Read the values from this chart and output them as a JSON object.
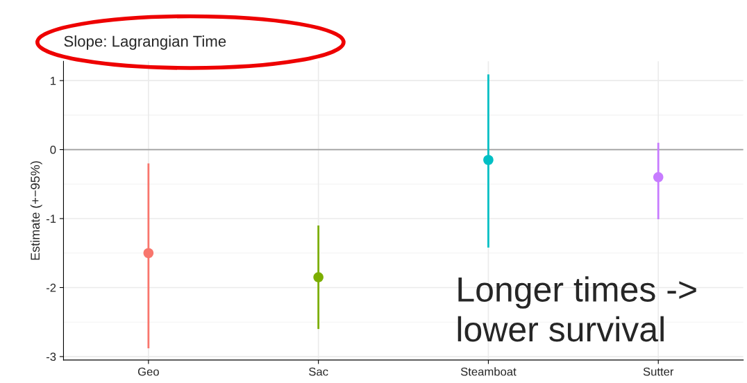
{
  "chart_data": {
    "type": "scatter",
    "title": "Slope: Lagrangian Time",
    "ylabel": "Estimate (+−95%)",
    "categories": [
      "Geo",
      "Sac",
      "Steamboat",
      "Sutter"
    ],
    "values": [
      -1.5,
      -1.85,
      -0.15,
      -0.4
    ],
    "colors": [
      "#f8766d",
      "#7cae00",
      "#00bfc4",
      "#c77cff"
    ],
    "errors": [
      [
        -2.88,
        -0.2
      ],
      [
        -2.6,
        -1.1
      ],
      [
        -1.42,
        1.09
      ],
      [
        -1.01,
        0.1
      ]
    ],
    "ylim": [
      -3.05,
      1.28
    ],
    "yticks": [
      -3,
      -2,
      -1,
      0,
      1
    ],
    "grid": true,
    "marker": "circle",
    "ref_lines": [
      {
        "axis": "y",
        "value": 0,
        "color": "#a0a0a0"
      }
    ],
    "annotations": [
      "Longer times ->\nlower survival"
    ]
  }
}
